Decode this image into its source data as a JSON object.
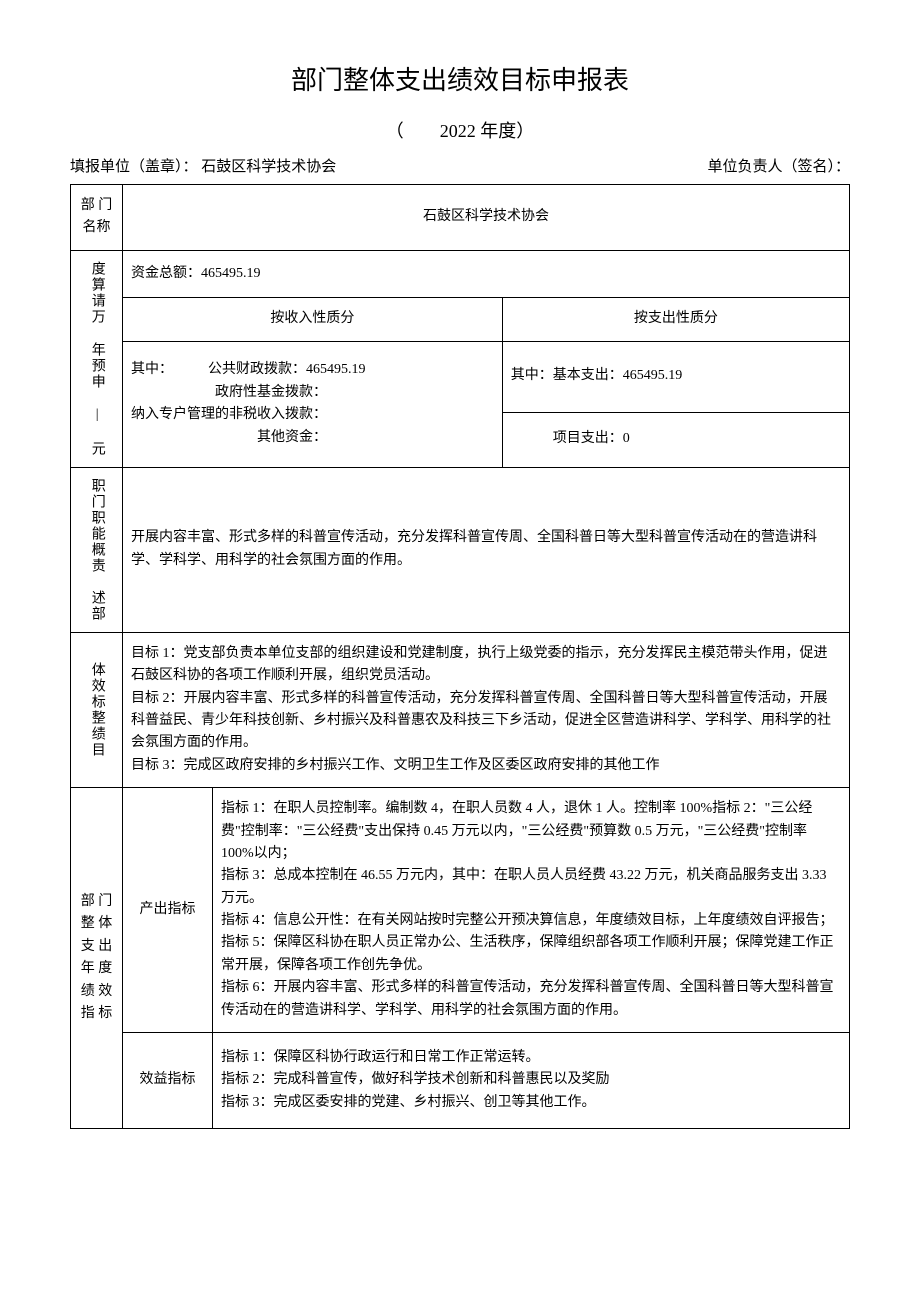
{
  "title": "部门整体支出绩效目标申报表",
  "subtitle": "（　　2022 年度）",
  "header": {
    "filing_unit_label": "填报单位（盖章）：",
    "filing_unit_value": "石鼓区科学技术协会",
    "responsible_label": "单位负责人（签名）："
  },
  "dept_name_label": "部 门名称",
  "dept_name": "石鼓区科学技术协会",
  "budget": {
    "label": "度算请万 年预申 | 元",
    "total": "资金总额：465495.19",
    "income_header": "按收入性质分",
    "expense_header": "按支出性质分",
    "income_lines": "其中：　　　公共财政拨款：465495.19\n　　　　　　政府性基金拨款：\n纳入专户管理的非税收入拨款：\n　　　　　　　　　其他资金：",
    "expense_basic": "其中：基本支出：465495.19",
    "expense_project": "　　　项目支出：0"
  },
  "function": {
    "label": "职门职能概责　述部",
    "text": "开展内容丰富、形式多样的科普宣传活动，充分发挥科普宣传周、全国科普日等大型科普宣传活动在的营造讲科学、学科学、用科学的社会氛围方面的作用。"
  },
  "goals": {
    "label": "体效标整绩目",
    "text": "目标 1：党支部负责本单位支部的组织建设和党建制度，执行上级党委的指示，充分发挥民主模范带头作用，促进石鼓区科协的各项工作顺利开展，组织党员活动。\n目标 2：开展内容丰富、形式多样的科普宣传活动，充分发挥科普宣传周、全国科普日等大型科普宣传活动，开展科普益民、青少年科技创新、乡村振兴及科普惠农及科技三下乡活动，促进全区营造讲科学、学科学、用科学的社会氛围方面的作用。\n目标 3：完成区政府安排的乡村振兴工作、文明卫生工作及区委区政府安排的其他工作"
  },
  "indicators": {
    "label": "部 门整 体支 出年 度绩 效指 标",
    "output_label": "产出指标",
    "output_text": "指标 1：在职人员控制率。编制数 4，在职人员数 4 人，退休 1 人。控制率 100%指标 2：\"三公经费\"控制率：\"三公经费\"支出保持 0.45 万元以内，\"三公经费\"预算数 0.5 万元，\"三公经费\"控制率 100%以内；\n指标 3：总成本控制在 46.55 万元内，其中：在职人员人员经费 43.22 万元，机关商品服务支出 3.33 万元。\n指标 4：信息公开性：在有关网站按时完整公开预决算信息，年度绩效目标，上年度绩效自评报告；\n指标 5：保障区科协在职人员正常办公、生活秩序，保障组织部各项工作顺利开展；保障党建工作正常开展，保障各项工作创先争优。\n指标 6：开展内容丰富、形式多样的科普宣传活动，充分发挥科普宣传周、全国科普日等大型科普宣传活动在的营造讲科学、学科学、用科学的社会氛围方面的作用。",
    "benefit_label": "效益指标",
    "benefit_text": "指标 1：保障区科协行政运行和日常工作正常运转。\n指标 2：完成科普宣传，做好科学技术创新和科普惠民以及奖励\n指标 3：完成区委安排的党建、乡村振兴、创卫等其他工作。"
  }
}
